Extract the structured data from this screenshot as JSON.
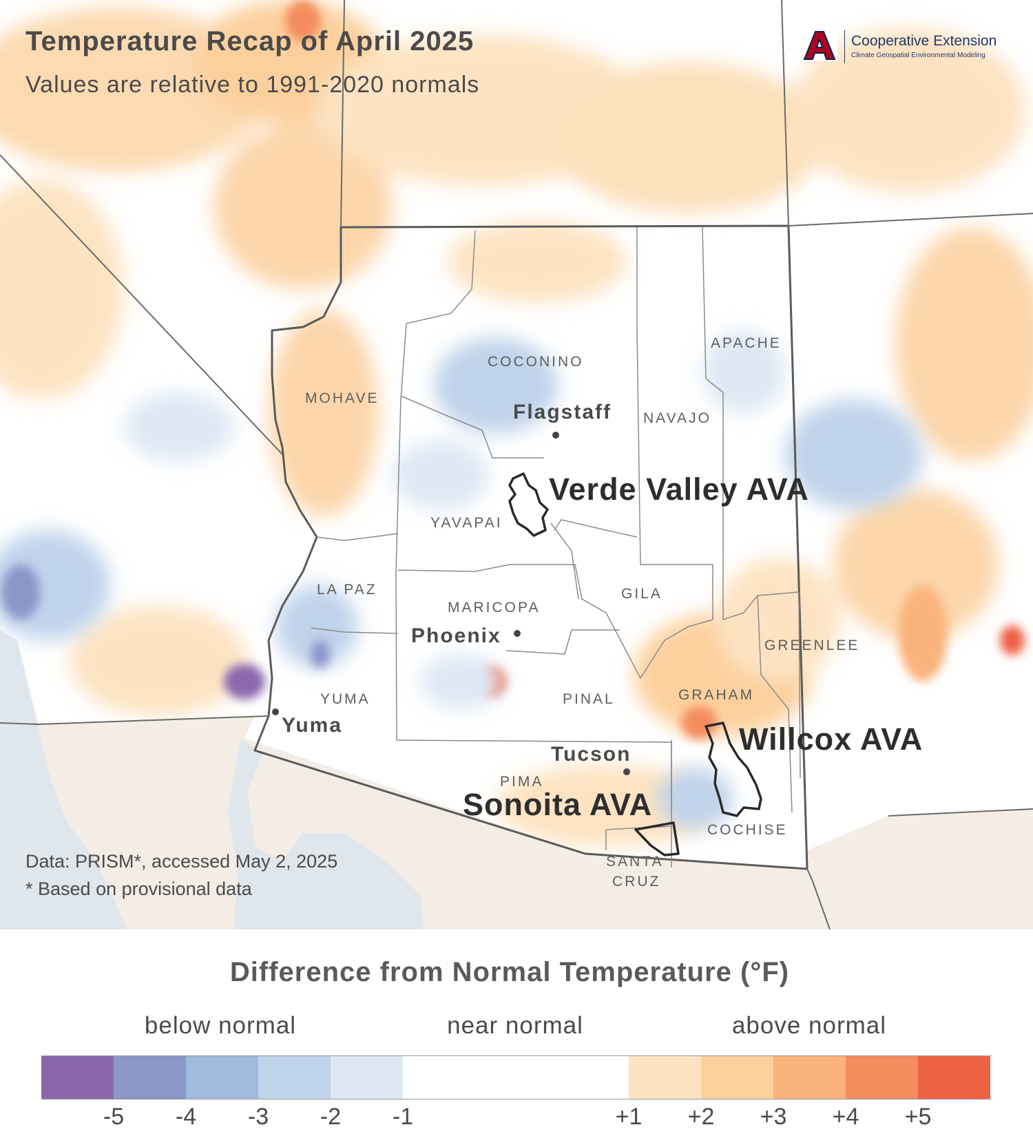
{
  "header": {
    "title": "Temperature Recap of April 2025",
    "subtitle": "Values are relative to 1991-2020 normals"
  },
  "logo": {
    "name": "Cooperative Extension",
    "tagline": "Climate Geospatial Environmental Modeling",
    "mark": "A",
    "colors": {
      "primary": "#ab0520",
      "secondary": "#0c234b"
    }
  },
  "source": {
    "line1": "Data: PRISM*, accessed May 2, 2025",
    "line2": "* Based on provisional data"
  },
  "counties": [
    "MOHAVE",
    "COCONINO",
    "NAVAJO",
    "APACHE",
    "YAVAPAI",
    "LA PAZ",
    "MARICOPA",
    "GILA",
    "GREENLEE",
    "YUMA",
    "PINAL",
    "GRAHAM",
    "PIMA",
    "COCHISE",
    "SANTA",
    "CRUZ"
  ],
  "cities": [
    "Flagstaff",
    "Phoenix",
    "Yuma",
    "Tucson"
  ],
  "avas": [
    "Verde Valley AVA",
    "Willcox AVA",
    "Sonoita AVA"
  ],
  "legend": {
    "title": "Difference from Normal Temperature (°F)",
    "groups": [
      "below normal",
      "near normal",
      "above normal"
    ],
    "ticks": [
      "-5",
      "-4",
      "-3",
      "-2",
      "-1",
      "+1",
      "+2",
      "+3",
      "+4",
      "+5"
    ],
    "bins": [
      {
        "range": "< -5",
        "color": "#8b68ad"
      },
      {
        "range": "-5 to -4",
        "color": "#8b96c9"
      },
      {
        "range": "-4 to -3",
        "color": "#9fbadd"
      },
      {
        "range": "-3 to -2",
        "color": "#bfd3ea"
      },
      {
        "range": "-2 to -1",
        "color": "#dde8f4"
      },
      {
        "range": "-1 to +1",
        "color": "#ffffff"
      },
      {
        "range": "+1 to +2",
        "color": "#fde3c2"
      },
      {
        "range": "+2 to +3",
        "color": "#fcd09d"
      },
      {
        "range": "+3 to +4",
        "color": "#f9b27c"
      },
      {
        "range": "+4 to +5",
        "color": "#f48c5d"
      },
      {
        "range": "> +5",
        "color": "#ee6244"
      }
    ]
  },
  "map_colors": {
    "land_outside": "#f3ede6",
    "water": "#dfe6ec",
    "border": "#5a5a5a"
  }
}
